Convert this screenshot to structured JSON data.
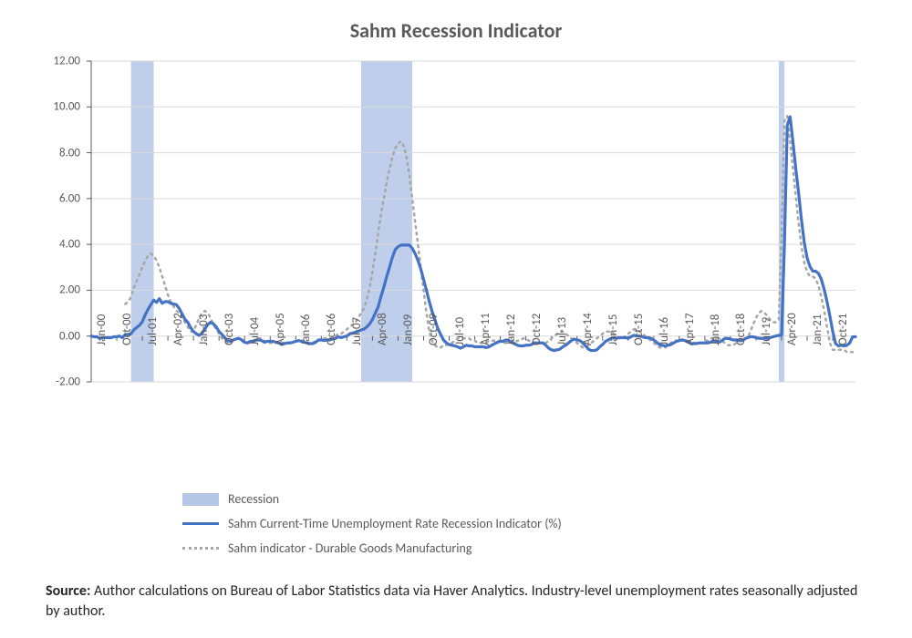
{
  "chart": {
    "type": "line",
    "title": "Sahm Recession Indicator",
    "title_fontsize": 22,
    "title_color": "#595959",
    "background_color": "#ffffff",
    "plot_background": "#ffffff",
    "gridline_color": "#d9d9d9",
    "axis_color": "#595959",
    "font_family": "Calibri, Arial, sans-serif",
    "label_fontsize": 13,
    "ylim": [
      -2.0,
      12.0
    ],
    "yticks": [
      -2.0,
      0.0,
      2.0,
      4.0,
      6.0,
      8.0,
      10.0,
      12.0
    ],
    "ytick_labels": [
      "-2.00",
      "0.00",
      "2.00",
      "4.00",
      "6.00",
      "8.00",
      "10.00",
      "12.00"
    ],
    "x_categories": [
      "Jan-00",
      "Oct-00",
      "Jul-01",
      "Apr-02",
      "Jan-03",
      "Oct-03",
      "Jul-04",
      "Apr-05",
      "Jan-06",
      "Oct-06",
      "Jul-07",
      "Apr-08",
      "Jan-09",
      "Oct-09",
      "Jul-10",
      "Apr-11",
      "Jan-12",
      "Oct-12",
      "Jul-13",
      "Apr-14",
      "Jan-15",
      "Oct-15",
      "Jul-16",
      "Apr-17",
      "Jan-18",
      "Oct-18",
      "Jul-19",
      "Apr-20",
      "Jan-21",
      "Oct-21"
    ],
    "x_index_range": [
      0,
      269
    ],
    "x_tick_indices": [
      0,
      9,
      18,
      27,
      36,
      45,
      54,
      63,
      72,
      81,
      90,
      99,
      108,
      117,
      126,
      135,
      144,
      153,
      162,
      171,
      180,
      189,
      198,
      207,
      216,
      225,
      234,
      243,
      252,
      261
    ],
    "recession_bands": {
      "color": "#b4c7e7",
      "opacity": 0.85,
      "ranges": [
        {
          "start_idx": 14,
          "end_idx": 22
        },
        {
          "start_idx": 95,
          "end_idx": 113
        },
        {
          "start_idx": 242,
          "end_idx": 244
        }
      ]
    },
    "series": [
      {
        "name": "Sahm Current-Time Unemployment Rate Recession Indicator (%)",
        "color": "#4472c4",
        "line_width": 3.2,
        "dash": "none",
        "data": [
          0.0,
          -0.03,
          -0.03,
          -0.1,
          -0.07,
          -0.07,
          -0.07,
          -0.07,
          -0.03,
          -0.03,
          0.0,
          -0.07,
          0.07,
          0.07,
          0.1,
          0.27,
          0.37,
          0.47,
          0.63,
          0.93,
          1.17,
          1.37,
          1.57,
          1.47,
          1.63,
          1.43,
          1.5,
          1.5,
          1.43,
          1.4,
          1.37,
          1.2,
          0.97,
          0.73,
          0.6,
          0.37,
          0.2,
          0.1,
          0.03,
          0.13,
          0.3,
          0.5,
          0.6,
          0.53,
          0.4,
          0.2,
          0.07,
          -0.07,
          -0.2,
          -0.23,
          -0.17,
          -0.13,
          -0.1,
          -0.17,
          -0.27,
          -0.3,
          -0.23,
          -0.23,
          -0.17,
          -0.17,
          -0.2,
          -0.27,
          -0.23,
          -0.23,
          -0.23,
          -0.27,
          -0.3,
          -0.37,
          -0.33,
          -0.3,
          -0.3,
          -0.27,
          -0.23,
          -0.2,
          -0.23,
          -0.27,
          -0.3,
          -0.33,
          -0.33,
          -0.27,
          -0.17,
          -0.17,
          -0.2,
          -0.17,
          -0.17,
          -0.13,
          -0.1,
          -0.03,
          -0.07,
          -0.03,
          0.0,
          0.1,
          0.13,
          0.17,
          0.2,
          0.27,
          0.3,
          0.4,
          0.53,
          0.73,
          1.0,
          1.27,
          1.73,
          2.13,
          2.6,
          3.0,
          3.43,
          3.77,
          3.9,
          3.97,
          3.97,
          3.97,
          3.97,
          3.83,
          3.6,
          3.3,
          2.93,
          2.47,
          2.0,
          1.5,
          1.07,
          0.7,
          0.33,
          0.07,
          -0.17,
          -0.3,
          -0.37,
          -0.4,
          -0.43,
          -0.47,
          -0.53,
          -0.47,
          -0.4,
          -0.43,
          -0.43,
          -0.47,
          -0.47,
          -0.47,
          -0.47,
          -0.5,
          -0.47,
          -0.4,
          -0.33,
          -0.27,
          -0.23,
          -0.23,
          -0.17,
          -0.2,
          -0.27,
          -0.33,
          -0.4,
          -0.43,
          -0.43,
          -0.4,
          -0.4,
          -0.37,
          -0.3,
          -0.3,
          -0.3,
          -0.3,
          -0.4,
          -0.53,
          -0.6,
          -0.63,
          -0.6,
          -0.57,
          -0.47,
          -0.4,
          -0.3,
          -0.2,
          -0.13,
          -0.17,
          -0.2,
          -0.3,
          -0.43,
          -0.57,
          -0.63,
          -0.63,
          -0.6,
          -0.47,
          -0.37,
          -0.23,
          -0.17,
          -0.1,
          -0.07,
          -0.1,
          -0.07,
          -0.07,
          -0.07,
          -0.1,
          -0.03,
          0.03,
          0.0,
          0.0,
          -0.03,
          -0.07,
          -0.07,
          -0.1,
          -0.17,
          -0.27,
          -0.37,
          -0.4,
          -0.43,
          -0.4,
          -0.37,
          -0.3,
          -0.23,
          -0.2,
          -0.17,
          -0.2,
          -0.23,
          -0.33,
          -0.33,
          -0.33,
          -0.3,
          -0.3,
          -0.3,
          -0.3,
          -0.27,
          -0.2,
          -0.23,
          -0.27,
          -0.2,
          -0.1,
          -0.1,
          -0.13,
          -0.17,
          -0.17,
          -0.2,
          -0.2,
          -0.13,
          -0.07,
          -0.03,
          -0.03,
          -0.07,
          -0.1,
          -0.1,
          -0.1,
          -0.1,
          -0.07,
          -0.03,
          0.0,
          0.03,
          0.03,
          4.0,
          9.2,
          9.57,
          8.47,
          7.3,
          6.23,
          5.07,
          4.07,
          3.4,
          3.03,
          2.83,
          2.83,
          2.73,
          2.47,
          2.03,
          1.5,
          0.87,
          0.2,
          -0.33,
          -0.43,
          -0.4,
          -0.43,
          -0.4,
          -0.3,
          -0.03,
          -0.03
        ]
      },
      {
        "name": "Sahm indicator - Durable Goods Manufacturing",
        "color": "#a6a6a6",
        "line_width": 2.5,
        "dash": "dotted",
        "data": [
          null,
          null,
          null,
          null,
          null,
          null,
          null,
          null,
          null,
          null,
          null,
          null,
          1.4,
          1.5,
          1.7,
          2.1,
          2.4,
          2.7,
          3.0,
          3.3,
          3.5,
          3.6,
          3.5,
          3.3,
          3.0,
          2.6,
          2.2,
          1.8,
          1.5,
          1.3,
          1.1,
          1.0,
          0.8,
          0.6,
          0.4,
          0.2,
          0.2,
          0.5,
          0.8,
          1.0,
          1.1,
          1.0,
          0.8,
          0.5,
          0.3,
          0.1,
          -0.1,
          -0.2,
          -0.3,
          -0.3,
          -0.2,
          -0.1,
          -0.1,
          -0.2,
          -0.3,
          -0.3,
          -0.3,
          -0.2,
          -0.2,
          -0.1,
          -0.1,
          -0.2,
          -0.3,
          -0.3,
          -0.3,
          -0.3,
          -0.3,
          -0.3,
          -0.3,
          -0.3,
          -0.3,
          -0.3,
          -0.2,
          -0.2,
          -0.2,
          -0.2,
          -0.3,
          -0.3,
          -0.3,
          -0.2,
          -0.2,
          -0.1,
          -0.1,
          -0.1,
          -0.1,
          -0.1,
          0.0,
          0.1,
          0.1,
          0.2,
          0.3,
          0.4,
          0.5,
          0.6,
          0.8,
          1.0,
          1.2,
          1.6,
          2.1,
          2.8,
          3.6,
          4.5,
          5.3,
          6.0,
          6.7,
          7.3,
          7.8,
          8.2,
          8.4,
          8.5,
          8.3,
          7.8,
          7.0,
          6.0,
          5.0,
          4.0,
          3.0,
          2.0,
          1.0,
          0.2,
          -0.2,
          -0.4,
          -0.5,
          -0.5,
          -0.4,
          -0.4,
          -0.3,
          -0.3,
          -0.2,
          -0.1,
          -0.1,
          -0.1,
          -0.1,
          -0.1,
          -0.2,
          -0.2,
          -0.3,
          -0.3,
          -0.3,
          -0.3,
          -0.2,
          -0.2,
          -0.2,
          -0.2,
          -0.2,
          -0.3,
          -0.3,
          -0.3,
          -0.3,
          -0.3,
          -0.2,
          -0.2,
          -0.1,
          -0.1,
          -0.2,
          -0.2,
          -0.3,
          -0.3,
          -0.3,
          -0.3,
          -0.3,
          -0.2,
          -0.1,
          0.0,
          0.1,
          0.2,
          0.2,
          0.1,
          0.0,
          -0.1,
          -0.2,
          -0.3,
          -0.4,
          -0.5,
          -0.5,
          -0.4,
          -0.3,
          -0.2,
          -0.1,
          0.0,
          0.1,
          0.2,
          0.2,
          0.2,
          0.1,
          0.0,
          -0.1,
          -0.1,
          0.0,
          0.1,
          0.2,
          0.3,
          0.3,
          0.2,
          0.1,
          0.0,
          -0.1,
          -0.2,
          -0.3,
          -0.4,
          -0.5,
          -0.5,
          -0.5,
          -0.4,
          -0.3,
          -0.2,
          -0.2,
          -0.2,
          -0.2,
          -0.2,
          -0.2,
          -0.3,
          -0.3,
          -0.3,
          -0.3,
          -0.3,
          -0.2,
          -0.2,
          -0.1,
          -0.1,
          -0.1,
          -0.1,
          -0.2,
          -0.3,
          -0.4,
          -0.4,
          -0.4,
          -0.3,
          -0.2,
          -0.1,
          -0.1,
          -0.1,
          0.2,
          0.5,
          0.8,
          1.0,
          1.1,
          1.0,
          0.9,
          0.7,
          0.6,
          0.6,
          0.7,
          4.5,
          9.4,
          9.6,
          8.5,
          7.3,
          6.1,
          4.9,
          3.9,
          3.2,
          2.8,
          2.6,
          2.6,
          2.5,
          2.2,
          1.7,
          1.1,
          0.4,
          -0.3,
          -0.6,
          -0.6,
          -0.6,
          -0.6,
          -0.6,
          -0.7,
          -0.7,
          -0.7
        ]
      }
    ],
    "legend": {
      "position": "bottom-center",
      "fontsize": 14,
      "items": [
        {
          "type": "rect",
          "color": "#b4c7e7",
          "label": "Recession"
        },
        {
          "type": "line",
          "color": "#4472c4",
          "dash": "none",
          "label": "Sahm Current-Time Unemployment Rate Recession Indicator (%)"
        },
        {
          "type": "line",
          "color": "#a6a6a6",
          "dash": "dotted",
          "label": "Sahm indicator - Durable Goods Manufacturing"
        }
      ]
    }
  },
  "source_note": {
    "label": "Source:",
    "text": "Author calculations on Bureau of Labor Statistics data via Haver Analytics. Industry-level unemployment rates seasonally adjusted by author.",
    "fontsize": 16,
    "color": "#262626"
  }
}
